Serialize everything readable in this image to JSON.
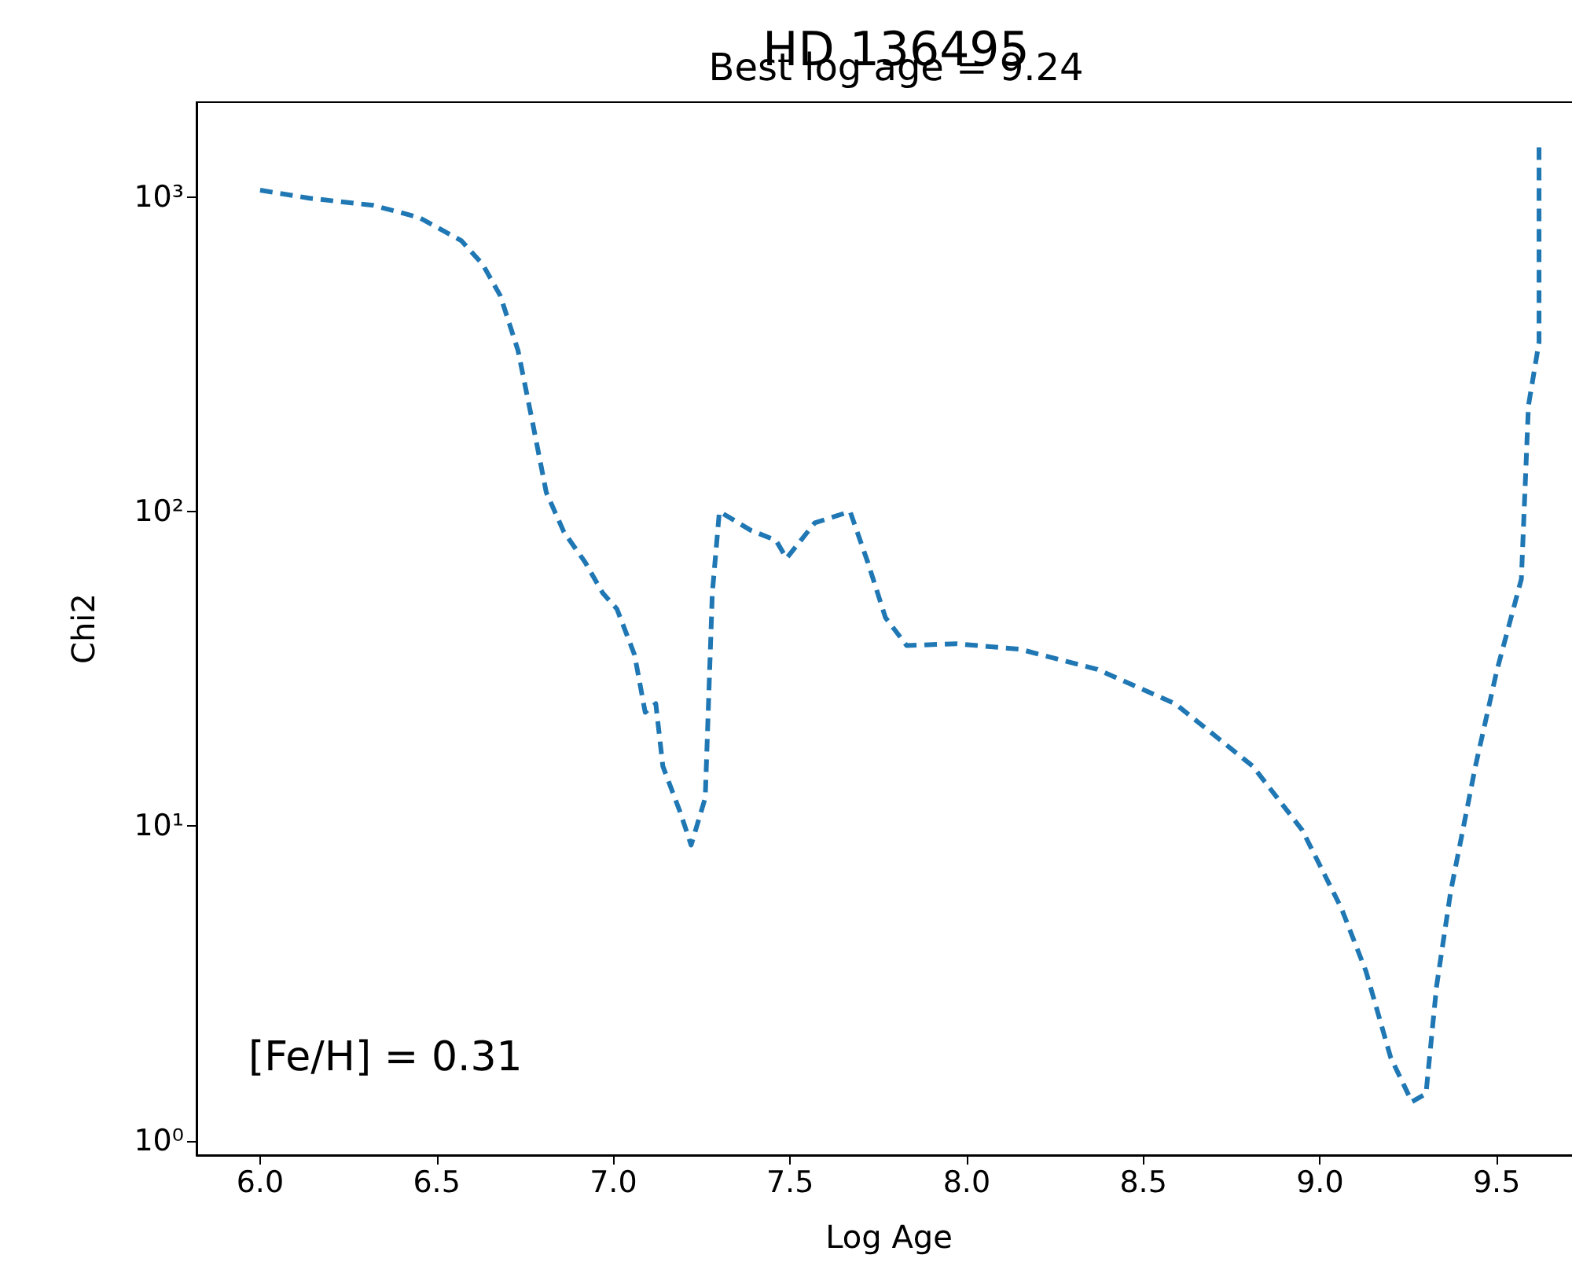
{
  "chart_data": {
    "type": "line",
    "title": "HD 136495",
    "subtitle": "Best log age = 9.24",
    "xlabel": "Log Age",
    "ylabel": "Chi2",
    "annotations": [
      "[Fe/H] = 0.31"
    ],
    "x": [
      6.0,
      6.14,
      6.32,
      6.45,
      6.57,
      6.63,
      6.68,
      6.73,
      6.77,
      6.81,
      6.86,
      6.92,
      6.97,
      7.01,
      7.06,
      7.09,
      7.12,
      7.14,
      7.19,
      7.22,
      7.26,
      7.28,
      7.3,
      7.39,
      7.46,
      7.49,
      7.57,
      7.67,
      7.72,
      7.77,
      7.83,
      7.97,
      8.15,
      8.37,
      8.59,
      8.81,
      8.95,
      9.06,
      9.13,
      9.2,
      9.26,
      9.3,
      9.33,
      9.37,
      9.44,
      9.5,
      9.57,
      9.59,
      9.62,
      9.62
    ],
    "series": [
      {
        "color": "#1f77b4",
        "values": [
          1050,
          990,
          940,
          860,
          725,
          610,
          485,
          325,
          195,
          115,
          86,
          69,
          55,
          49,
          35,
          23,
          24.5,
          15.5,
          11,
          8.7,
          12.3,
          55,
          100,
          87,
          81,
          71,
          92,
          100,
          69,
          46,
          37.5,
          38,
          36.5,
          31.5,
          24.5,
          15.5,
          9.7,
          5.5,
          3.46,
          1.84,
          1.33,
          1.41,
          3.1,
          6.2,
          15.5,
          31,
          61,
          217,
          345,
          1440
        ]
      }
    ],
    "log": "y",
    "line_style": "dashed",
    "marker": "none",
    "xlim": [
      5.82,
      9.74
    ],
    "xticks": [
      {
        "value": 6,
        "label": "6.0"
      },
      {
        "value": 6.5,
        "label": "6.5"
      },
      {
        "value": 7,
        "label": "7.0"
      },
      {
        "value": 7.5,
        "label": "7.5"
      },
      {
        "value": 8,
        "label": "8.0"
      },
      {
        "value": 8.5,
        "label": "8.5"
      },
      {
        "value": 9,
        "label": "9.0"
      },
      {
        "value": 9.5,
        "label": "9.5"
      }
    ],
    "ylim": [
      0.9,
      2000
    ],
    "yticks": [
      {
        "value": 1,
        "label": "10⁰"
      },
      {
        "value": 10,
        "label": "10¹"
      },
      {
        "value": 100,
        "label": "10²"
      },
      {
        "value": 1000,
        "label": "10³"
      }
    ]
  }
}
